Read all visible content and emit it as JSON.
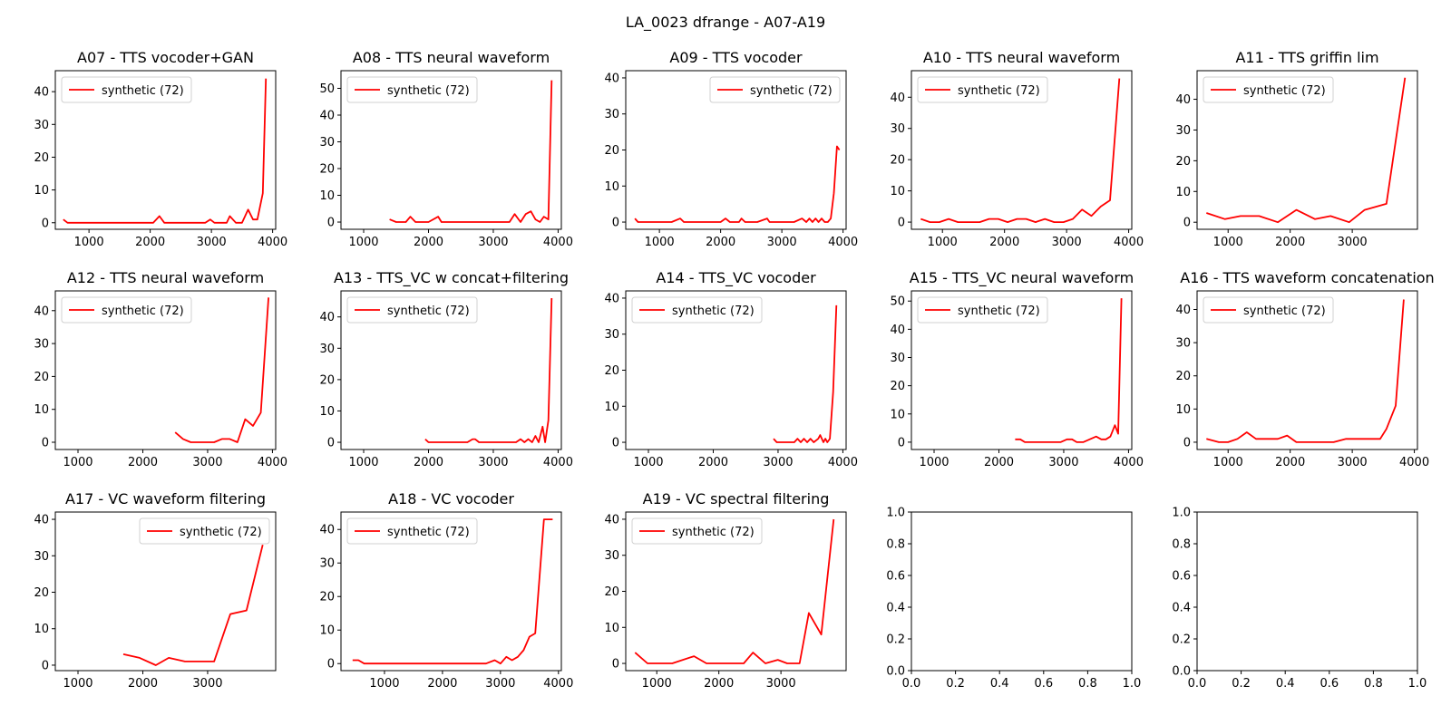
{
  "figure_title": "LA_0023 dfrange - A07-A19",
  "colors": {
    "series": "#ff0000"
  },
  "chart_data": [
    {
      "type": "line",
      "title": "A07 - TTS vocoder+GAN",
      "xlim": [
        450,
        4050
      ],
      "ylim": [
        -2,
        46.4
      ],
      "xticks": [
        1000,
        2000,
        3000,
        4000
      ],
      "yticks": [
        0,
        10,
        20,
        30,
        40
      ],
      "legend": "upper-left",
      "series": [
        {
          "name": "synthetic (72)",
          "color": "#ff0000",
          "x": [
            580,
            650,
            750,
            900,
            1100,
            1300,
            1500,
            1700,
            1900,
            2050,
            2150,
            2230,
            2350,
            2500,
            2700,
            2900,
            2980,
            3050,
            3150,
            3250,
            3300,
            3400,
            3500,
            3600,
            3680,
            3750,
            3840,
            3890
          ],
          "y": [
            1,
            0,
            0,
            0,
            0,
            0,
            0,
            0,
            0,
            0,
            2,
            0,
            0,
            0,
            0,
            0,
            1,
            0,
            0,
            0,
            2,
            0,
            0,
            4,
            1,
            1,
            9,
            44
          ]
        }
      ]
    },
    {
      "type": "line",
      "title": "A08 - TTS neural waveform",
      "xlim": [
        650,
        4050
      ],
      "ylim": [
        -2.7,
        56.6
      ],
      "xticks": [
        1000,
        2000,
        3000,
        4000
      ],
      "yticks": [
        0,
        10,
        20,
        30,
        40,
        50
      ],
      "legend": "upper-left",
      "series": [
        {
          "name": "synthetic (72)",
          "color": "#ff0000",
          "x": [
            1400,
            1500,
            1650,
            1720,
            1800,
            2000,
            2150,
            2200,
            2300,
            2500,
            2700,
            2900,
            3100,
            3250,
            3330,
            3420,
            3500,
            3580,
            3650,
            3720,
            3780,
            3850,
            3900
          ],
          "y": [
            1,
            0,
            0,
            2,
            0,
            0,
            2,
            0,
            0,
            0,
            0,
            0,
            0,
            0,
            3,
            0,
            3,
            4,
            1,
            0,
            2,
            1,
            53
          ]
        }
      ]
    },
    {
      "type": "line",
      "title": "A09 - TTS vocoder",
      "xlim": [
        450,
        4050
      ],
      "ylim": [
        -2,
        42
      ],
      "xticks": [
        1000,
        2000,
        3000,
        4000
      ],
      "yticks": [
        0,
        10,
        20,
        30,
        40
      ],
      "legend": "upper-right",
      "series": [
        {
          "name": "synthetic (72)",
          "color": "#ff0000",
          "x": [
            600,
            650,
            800,
            1000,
            1200,
            1340,
            1400,
            1600,
            1800,
            2000,
            2080,
            2150,
            2300,
            2340,
            2400,
            2600,
            2760,
            2800,
            3000,
            3200,
            3330,
            3400,
            3450,
            3500,
            3550,
            3600,
            3650,
            3700,
            3750,
            3800,
            3850,
            3900,
            3940
          ],
          "y": [
            1,
            0,
            0,
            0,
            0,
            1,
            0,
            0,
            0,
            0,
            1,
            0,
            0,
            1,
            0,
            0,
            1,
            0,
            0,
            0,
            1,
            0,
            1,
            0,
            1,
            0,
            1,
            0,
            0,
            1,
            8,
            21,
            20
          ]
        }
      ]
    },
    {
      "type": "line",
      "title": "A10 - TTS neural waveform",
      "xlim": [
        500,
        4050
      ],
      "ylim": [
        -2.3,
        48.5
      ],
      "xticks": [
        1000,
        2000,
        3000,
        4000
      ],
      "yticks": [
        0,
        10,
        20,
        30,
        40
      ],
      "legend": "upper-left",
      "series": [
        {
          "name": "synthetic (72)",
          "color": "#ff0000",
          "x": [
            650,
            800,
            950,
            1100,
            1250,
            1400,
            1600,
            1750,
            1900,
            2050,
            2200,
            2350,
            2500,
            2650,
            2800,
            2950,
            3100,
            3250,
            3400,
            3550,
            3700,
            3850
          ],
          "y": [
            1,
            0,
            0,
            1,
            0,
            0,
            0,
            1,
            1,
            0,
            1,
            1,
            0,
            1,
            0,
            0,
            1,
            4,
            2,
            5,
            7,
            46
          ]
        }
      ]
    },
    {
      "type": "line",
      "title": "A11 - TTS griffin lim",
      "xlim": [
        500,
        4050
      ],
      "ylim": [
        -2.3,
        49.3
      ],
      "xticks": [
        1000,
        2000,
        3000
      ],
      "yticks": [
        0,
        10,
        20,
        30,
        40
      ],
      "legend": "upper-left",
      "series": [
        {
          "name": "synthetic (72)",
          "color": "#ff0000",
          "x": [
            650,
            950,
            1200,
            1500,
            1800,
            2100,
            2400,
            2650,
            2950,
            3200,
            3550,
            3850
          ],
          "y": [
            3,
            1,
            2,
            2,
            0,
            4,
            1,
            2,
            0,
            4,
            6,
            47
          ]
        }
      ]
    },
    {
      "type": "line",
      "title": "A12 - TTS neural waveform",
      "xlim": [
        650,
        4050
      ],
      "ylim": [
        -2.2,
        46
      ],
      "xticks": [
        1000,
        2000,
        3000,
        4000
      ],
      "yticks": [
        0,
        10,
        20,
        30,
        40
      ],
      "legend": "upper-left",
      "series": [
        {
          "name": "synthetic (72)",
          "color": "#ff0000",
          "x": [
            2500,
            2620,
            2740,
            2860,
            2980,
            3100,
            3220,
            3340,
            3460,
            3580,
            3700,
            3820,
            3940
          ],
          "y": [
            3,
            1,
            0,
            0,
            0,
            0,
            1,
            1,
            0,
            7,
            5,
            9,
            44
          ]
        }
      ]
    },
    {
      "type": "line",
      "title": "A13 - TTS_VC w concat+filtering",
      "xlim": [
        650,
        4050
      ],
      "ylim": [
        -2.3,
        48.3
      ],
      "xticks": [
        1000,
        2000,
        3000,
        4000
      ],
      "yticks": [
        0,
        10,
        20,
        30,
        40
      ],
      "legend": "upper-left",
      "series": [
        {
          "name": "synthetic (72)",
          "color": "#ff0000",
          "x": [
            1950,
            2000,
            2200,
            2400,
            2600,
            2680,
            2720,
            2780,
            3000,
            3200,
            3350,
            3420,
            3480,
            3540,
            3600,
            3650,
            3700,
            3760,
            3800,
            3850,
            3900
          ],
          "y": [
            1,
            0,
            0,
            0,
            0,
            1,
            1,
            0,
            0,
            0,
            0,
            1,
            0,
            1,
            0,
            2,
            0,
            5,
            0,
            7,
            46
          ]
        }
      ]
    },
    {
      "type": "line",
      "title": "A14 - TTS_VC vocoder",
      "xlim": [
        650,
        4050
      ],
      "ylim": [
        -2,
        42
      ],
      "xticks": [
        1000,
        2000,
        3000,
        4000
      ],
      "yticks": [
        0,
        10,
        20,
        30,
        40
      ],
      "legend": "upper-left",
      "series": [
        {
          "name": "synthetic (72)",
          "color": "#ff0000",
          "x": [
            2930,
            2980,
            3100,
            3250,
            3300,
            3350,
            3400,
            3450,
            3500,
            3550,
            3620,
            3650,
            3700,
            3730,
            3760,
            3800,
            3850,
            3900
          ],
          "y": [
            1,
            0,
            0,
            0,
            1,
            0,
            1,
            0,
            1,
            0,
            1,
            2,
            0,
            1,
            0,
            1,
            14,
            38
          ]
        }
      ]
    },
    {
      "type": "line",
      "title": "A15 - TTS_VC neural waveform",
      "xlim": [
        650,
        4050
      ],
      "ylim": [
        -2.6,
        53.6
      ],
      "xticks": [
        1000,
        2000,
        3000,
        4000
      ],
      "yticks": [
        0,
        10,
        20,
        30,
        40,
        50
      ],
      "legend": "upper-left",
      "series": [
        {
          "name": "synthetic (72)",
          "color": "#ff0000",
          "x": [
            2250,
            2330,
            2400,
            2600,
            2800,
            2950,
            3050,
            3130,
            3200,
            3300,
            3400,
            3500,
            3580,
            3650,
            3720,
            3790,
            3840,
            3890
          ],
          "y": [
            1,
            1,
            0,
            0,
            0,
            0,
            1,
            1,
            0,
            0,
            1,
            2,
            1,
            1,
            2,
            6,
            3,
            51
          ]
        }
      ]
    },
    {
      "type": "line",
      "title": "A16 - TTS waveform concatenation",
      "xlim": [
        500,
        4050
      ],
      "ylim": [
        -2.2,
        45.6
      ],
      "xticks": [
        1000,
        2000,
        3000,
        4000
      ],
      "yticks": [
        0,
        10,
        20,
        30,
        40
      ],
      "legend": "upper-left",
      "series": [
        {
          "name": "synthetic (72)",
          "color": "#ff0000",
          "x": [
            650,
            850,
            1000,
            1150,
            1300,
            1450,
            1600,
            1800,
            1950,
            2100,
            2300,
            2500,
            2700,
            2900,
            3100,
            3300,
            3450,
            3550,
            3700,
            3830
          ],
          "y": [
            1,
            0,
            0,
            1,
            3,
            1,
            1,
            1,
            2,
            0,
            0,
            0,
            0,
            1,
            1,
            1,
            1,
            4,
            11,
            43
          ]
        }
      ]
    },
    {
      "type": "line",
      "title": "A17 - VC waveform filtering",
      "xlim": [
        650,
        4050
      ],
      "ylim": [
        -1.5,
        42
      ],
      "xticks": [
        1000,
        2000,
        3000
      ],
      "yticks": [
        0,
        10,
        20,
        30,
        40
      ],
      "legend": "upper-right",
      "series": [
        {
          "name": "synthetic (72)",
          "color": "#ff0000",
          "x": [
            1700,
            1950,
            2200,
            2400,
            2650,
            2900,
            3100,
            3350,
            3600,
            3850
          ],
          "y": [
            3,
            2,
            0,
            2,
            1,
            1,
            1,
            14,
            15,
            33
          ]
        }
      ]
    },
    {
      "type": "line",
      "title": "A18 - VC vocoder",
      "xlim": [
        250,
        4050
      ],
      "ylim": [
        -2.1,
        45.2
      ],
      "xticks": [
        1000,
        2000,
        3000,
        4000
      ],
      "yticks": [
        0,
        10,
        20,
        30,
        40
      ],
      "legend": "upper-left",
      "series": [
        {
          "name": "synthetic (72)",
          "color": "#ff0000",
          "x": [
            450,
            550,
            650,
            900,
            1200,
            1500,
            1800,
            2100,
            2400,
            2750,
            2900,
            3000,
            3100,
            3200,
            3300,
            3400,
            3500,
            3600,
            3750,
            3900
          ],
          "y": [
            1,
            1,
            0,
            0,
            0,
            0,
            0,
            0,
            0,
            0,
            1,
            0,
            2,
            1,
            2,
            4,
            8,
            9,
            43,
            43
          ]
        }
      ]
    },
    {
      "type": "line",
      "title": "A19 - VC spectral filtering",
      "xlim": [
        500,
        4050
      ],
      "ylim": [
        -2,
        42
      ],
      "xticks": [
        1000,
        2000,
        3000
      ],
      "yticks": [
        0,
        10,
        20,
        30,
        40
      ],
      "legend": "upper-left",
      "series": [
        {
          "name": "synthetic (72)",
          "color": "#ff0000",
          "x": [
            650,
            850,
            1050,
            1250,
            1600,
            1800,
            2050,
            2400,
            2550,
            2750,
            2950,
            3100,
            3200,
            3300,
            3450,
            3650,
            3850
          ],
          "y": [
            3,
            0,
            0,
            0,
            2,
            0,
            0,
            0,
            3,
            0,
            1,
            0,
            0,
            0,
            14,
            8,
            40
          ]
        }
      ]
    },
    {
      "type": "line",
      "title": "",
      "xlim": [
        0,
        1
      ],
      "ylim": [
        0,
        1
      ],
      "xticks": [
        0.0,
        0.2,
        0.4,
        0.6,
        0.8,
        1.0
      ],
      "yticks": [
        0.0,
        0.2,
        0.4,
        0.6,
        0.8,
        1.0
      ],
      "tick_format": "1dp",
      "series": []
    },
    {
      "type": "line",
      "title": "",
      "xlim": [
        0,
        1
      ],
      "ylim": [
        0,
        1
      ],
      "xticks": [
        0.0,
        0.2,
        0.4,
        0.6,
        0.8,
        1.0
      ],
      "yticks": [
        0.0,
        0.2,
        0.4,
        0.6,
        0.8,
        1.0
      ],
      "tick_format": "1dp",
      "series": []
    }
  ]
}
